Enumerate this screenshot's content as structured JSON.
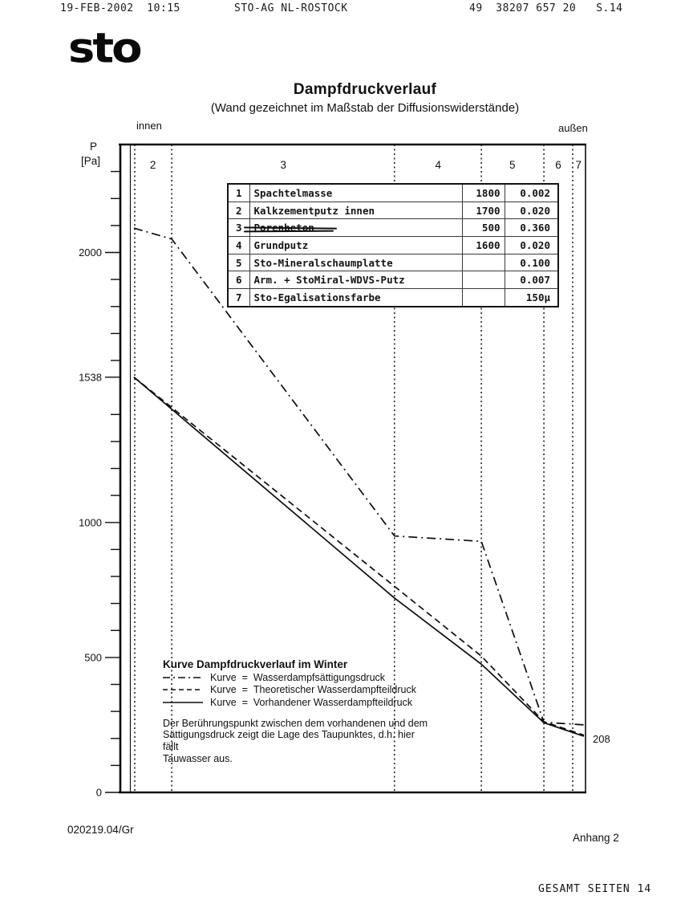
{
  "fax_header": {
    "date_time": "19-FEB-2002  10:15",
    "station": "STO-AG NL-ROSTOCK",
    "number_page": "49  38207 657 20   S.14"
  },
  "logo": {
    "text": "sto"
  },
  "title": "Dampfdruckverlauf",
  "subtitle": "(Wand gezeichnet im Maßstab der Diffusionswiderstände)",
  "side_labels": {
    "left": "innen",
    "right": "außen"
  },
  "y_axis": {
    "symbol": "P",
    "unit": "[Pa]"
  },
  "materials_table": {
    "rows": [
      {
        "no": "1",
        "name": "Spachtelmasse",
        "density": "1800",
        "sd": "0.002"
      },
      {
        "no": "2",
        "name": "Kalkzementputz innen",
        "density": "1700",
        "sd": "0.020"
      },
      {
        "no": "3",
        "name": "Porenbeton",
        "density": "500",
        "sd": "0.360"
      },
      {
        "no": "4",
        "name": "Grundputz",
        "density": "1600",
        "sd": "0.020"
      },
      {
        "no": "5",
        "name": "Sto-Mineralschaumplatte",
        "density": "",
        "sd": "0.100"
      },
      {
        "no": "6",
        "name": "Arm. + StoMiral-WDVS-Putz",
        "density": "",
        "sd": "0.007"
      },
      {
        "no": "7",
        "name": "Sto-Egalisationsfarbe",
        "density": "",
        "sd": "150µ"
      }
    ]
  },
  "legend": {
    "title": "Kurve Dampfdruckverlauf im Winter",
    "items": [
      {
        "prefix": "Kurve  =  ",
        "name": "Wasserdampfsättigungsdruck",
        "style": "dashdot"
      },
      {
        "prefix": "Kurve  =  ",
        "name": "Theoretischer Wasserdampfteildruck",
        "style": "dashed"
      },
      {
        "prefix": "Kurve  =  ",
        "name": "Vorhandener Wasserdampfteildruck",
        "style": "solid"
      }
    ]
  },
  "note": {
    "lines": [
      "Der Berührungspunkt zwischen dem vorhandenen und dem",
      "Sättigungsdruck zeigt die Lage des Taupunktes, d.h. hier fällt",
      "Tauwasser aus."
    ]
  },
  "chart_data": {
    "type": "line",
    "title": "Dampfdruckverlauf",
    "ylabel": "P [Pa]",
    "ylim": [
      0,
      2400
    ],
    "x_meaning": "wall cross-section scaled by diffusion resistance, innen (0) to außen (1)",
    "y_ticks_labeled": [
      {
        "value": 0,
        "label": "0"
      },
      {
        "value": 500,
        "label": "500"
      },
      {
        "value": 1000,
        "label": "1000"
      },
      {
        "value": 1538,
        "label": "1538"
      },
      {
        "value": 2000,
        "label": "2000"
      }
    ],
    "y_minor_tick_step": 100,
    "layer_boundaries": [
      0.084,
      0.579,
      0.772,
      0.911,
      0.975
    ],
    "zones": [
      {
        "label": "2",
        "center": 0.042
      },
      {
        "label": "3",
        "center": 0.332
      },
      {
        "label": "4",
        "center": 0.676
      },
      {
        "label": "5",
        "center": 0.841
      },
      {
        "label": "6",
        "center": 0.943
      },
      {
        "label": "7",
        "center": 0.988
      }
    ],
    "series": [
      {
        "name": "Wasserdampfsättigungsdruck",
        "style": "dashdot",
        "points": [
          [
            0,
            2090
          ],
          [
            0.084,
            2050
          ],
          [
            0.579,
            950
          ],
          [
            0.772,
            930
          ],
          [
            0.911,
            260
          ],
          [
            1,
            250
          ]
        ]
      },
      {
        "name": "Theoretischer Wasserdampfteildruck",
        "style": "dashed",
        "points": [
          [
            0,
            1538
          ],
          [
            0.772,
            505
          ],
          [
            0.911,
            262
          ],
          [
            1,
            212
          ]
        ]
      },
      {
        "name": "Vorhandener Wasserdampfteildruck",
        "style": "solid",
        "points": [
          [
            0,
            1538
          ],
          [
            0.579,
            720
          ],
          [
            0.772,
            475
          ],
          [
            0.911,
            258
          ],
          [
            1,
            208
          ]
        ]
      }
    ],
    "end_label": {
      "text": "208",
      "value": 208
    }
  },
  "footer": {
    "doc_code": "020219.04/Gr",
    "annex": "Anhang 2",
    "total_pages": "GESAMT SEITEN 14"
  }
}
